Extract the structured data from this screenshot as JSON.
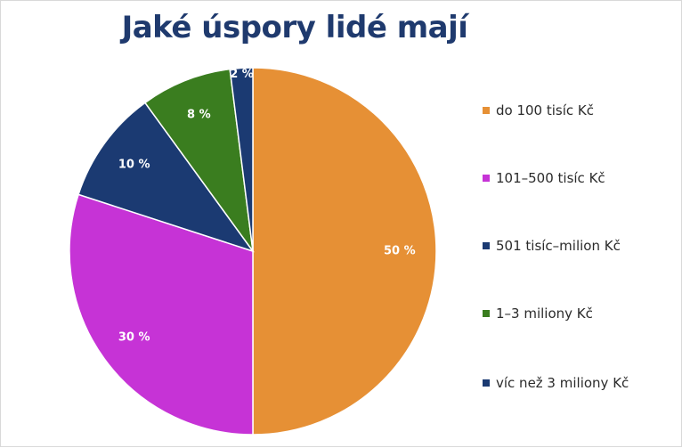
{
  "chart_data": {
    "type": "pie",
    "title": "Jaké úspory lidé mají",
    "categories": [
      "do 100 tisíc Kč",
      "101–500 tisíc Kč",
      "501 tisíc–milion Kč",
      "1–3 miliony Kč",
      "víc než 3 miliony Kč"
    ],
    "values": [
      50,
      30,
      10,
      8,
      2
    ],
    "labels": [
      "50 %",
      "30 %",
      "10 %",
      "8 %",
      "2 %"
    ],
    "colors": [
      "#e69035",
      "#c633d6",
      "#1b3a72",
      "#3a7d1f",
      "#1b3a72"
    ],
    "legend_position": "right"
  }
}
